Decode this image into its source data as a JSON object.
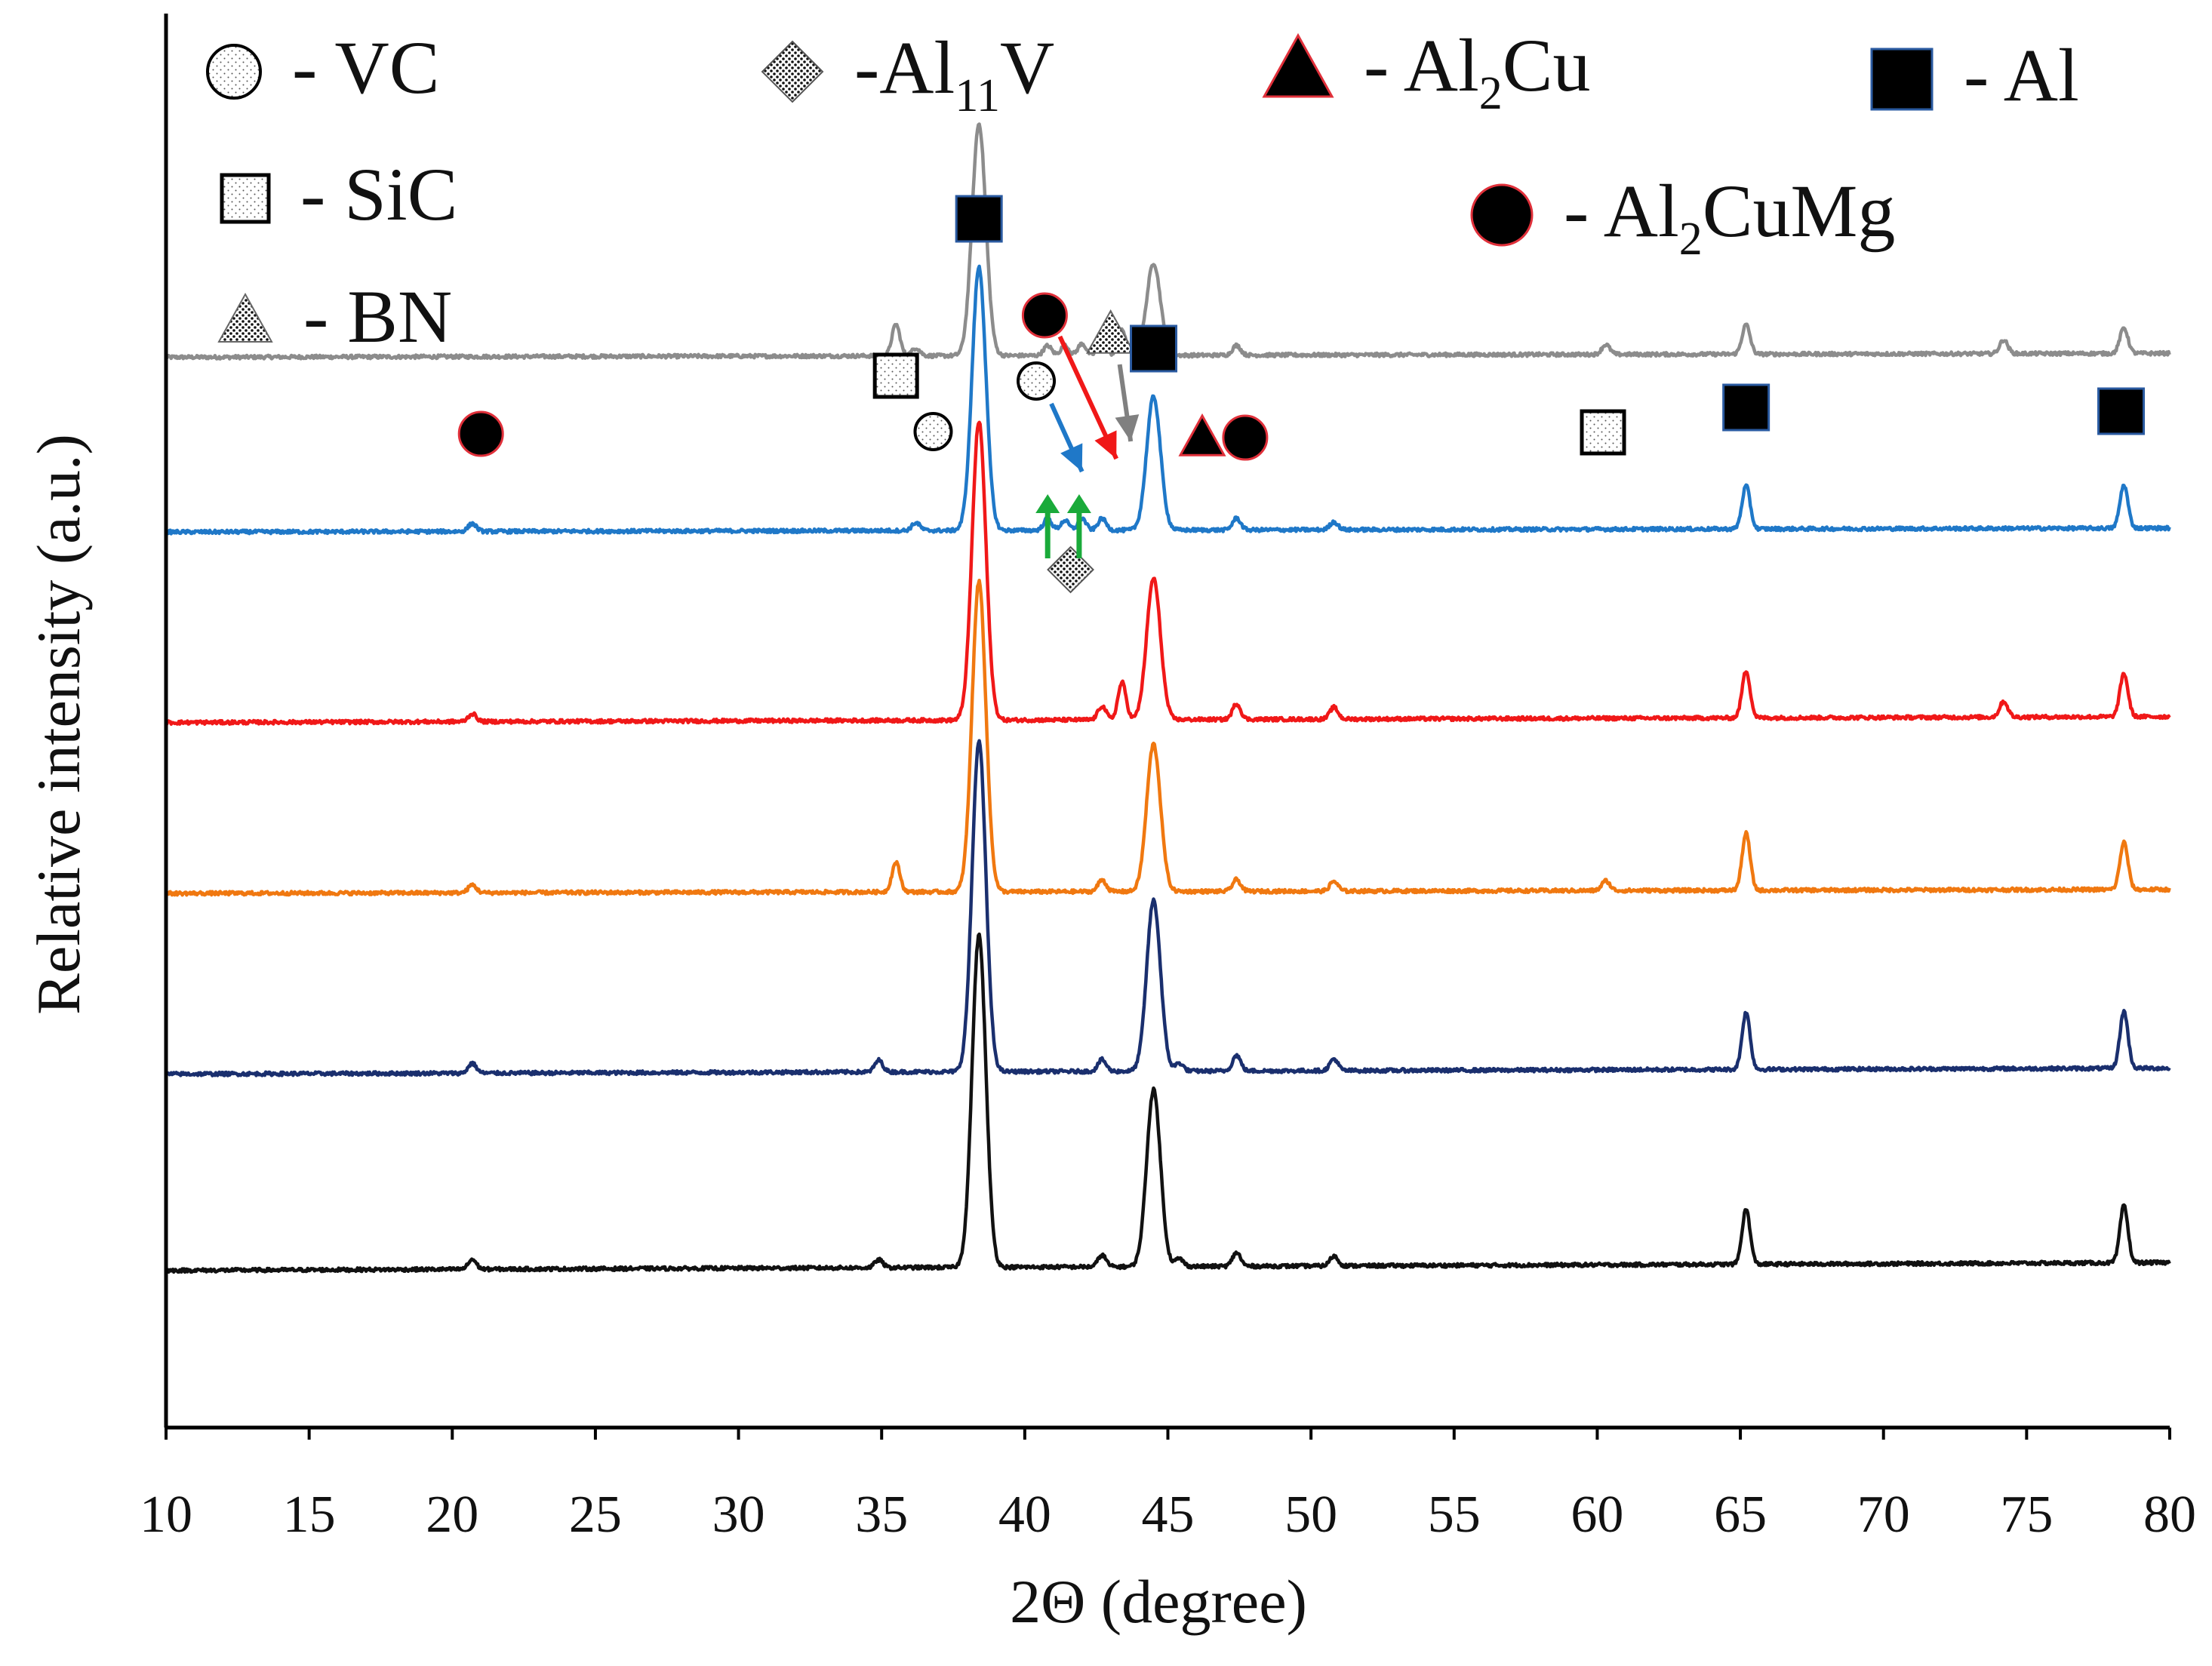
{
  "chart_data": {
    "type": "line",
    "title": "",
    "xlabel": "2Θ (degree)",
    "ylabel": "Relative intensity (a.u.)",
    "xlim": [
      10,
      80
    ],
    "xticks": [
      10,
      15,
      20,
      25,
      30,
      35,
      40,
      45,
      50,
      55,
      60,
      65,
      70,
      75,
      80
    ],
    "ylim": [
      0,
      7.2
    ],
    "grid": false,
    "legend_position": "top",
    "series_note": "Six stacked XRD patterns (top to bottom: gray, blue, red, orange, navy, black); values are relative intensity above each baseline offset",
    "series": [
      {
        "name": "gray",
        "color": "#8c8c8c",
        "offset": 5.45,
        "baseline_end": 5.47,
        "peaks": [
          [
            35.5,
            0.16
          ],
          [
            36.2,
            0.04
          ],
          [
            38.4,
            1.18
          ],
          [
            40.8,
            0.05
          ],
          [
            41.4,
            0.05
          ],
          [
            42.0,
            0.06
          ],
          [
            42.7,
            0.08
          ],
          [
            43.4,
            0.13
          ],
          [
            44.5,
            0.47
          ],
          [
            47.4,
            0.05
          ],
          [
            60.3,
            0.05
          ],
          [
            65.2,
            0.15
          ],
          [
            74.2,
            0.07
          ],
          [
            78.4,
            0.13
          ]
        ]
      },
      {
        "name": "blue",
        "color": "#1f78c8",
        "offset": 4.56,
        "baseline_end": 4.58,
        "peaks": [
          [
            20.7,
            0.04
          ],
          [
            36.2,
            0.04
          ],
          [
            38.4,
            1.34
          ],
          [
            40.8,
            0.06
          ],
          [
            41.4,
            0.05
          ],
          [
            42.0,
            0.06
          ],
          [
            42.7,
            0.06
          ],
          [
            44.5,
            0.68
          ],
          [
            47.4,
            0.06
          ],
          [
            50.8,
            0.04
          ],
          [
            65.2,
            0.22
          ],
          [
            78.4,
            0.22
          ]
        ]
      },
      {
        "name": "red",
        "color": "#f01818",
        "offset": 3.59,
        "baseline_end": 3.62,
        "peaks": [
          [
            20.7,
            0.04
          ],
          [
            38.4,
            1.52
          ],
          [
            42.7,
            0.07
          ],
          [
            43.4,
            0.19
          ],
          [
            44.5,
            0.72
          ],
          [
            47.4,
            0.08
          ],
          [
            50.8,
            0.06
          ],
          [
            65.2,
            0.24
          ],
          [
            74.2,
            0.08
          ],
          [
            78.4,
            0.22
          ]
        ]
      },
      {
        "name": "orange",
        "color": "#f07810",
        "offset": 2.72,
        "baseline_end": 2.74,
        "peaks": [
          [
            20.7,
            0.04
          ],
          [
            35.5,
            0.15
          ],
          [
            38.4,
            1.58
          ],
          [
            42.7,
            0.06
          ],
          [
            44.5,
            0.75
          ],
          [
            47.4,
            0.06
          ],
          [
            50.8,
            0.05
          ],
          [
            60.3,
            0.05
          ],
          [
            65.2,
            0.29
          ],
          [
            78.4,
            0.24
          ]
        ]
      },
      {
        "name": "navy",
        "color": "#1a2f6e",
        "offset": 1.8,
        "baseline_end": 1.83,
        "peaks": [
          [
            20.7,
            0.05
          ],
          [
            34.9,
            0.06
          ],
          [
            38.4,
            1.68
          ],
          [
            42.7,
            0.06
          ],
          [
            44.5,
            0.87
          ],
          [
            45.4,
            0.04
          ],
          [
            47.4,
            0.08
          ],
          [
            50.8,
            0.06
          ],
          [
            65.2,
            0.29
          ],
          [
            78.4,
            0.29
          ]
        ]
      },
      {
        "name": "black",
        "color": "#111111",
        "offset": 0.8,
        "baseline_end": 0.84,
        "peaks": [
          [
            20.7,
            0.05
          ],
          [
            34.9,
            0.04
          ],
          [
            38.4,
            1.69
          ],
          [
            42.7,
            0.06
          ],
          [
            44.5,
            0.9
          ],
          [
            45.4,
            0.04
          ],
          [
            47.4,
            0.07
          ],
          [
            50.8,
            0.05
          ],
          [
            65.2,
            0.28
          ],
          [
            78.4,
            0.29
          ]
        ]
      }
    ],
    "legend": [
      {
        "symbol": "open-circle",
        "label": "- VC",
        "color": "#ffffff"
      },
      {
        "symbol": "dotted-diamond",
        "label": "-Al",
        "subscript": "11",
        "suffix": "V",
        "color": "#ffffff"
      },
      {
        "symbol": "filled-triangle",
        "label": "- Al",
        "subscript": "2",
        "suffix": "Cu",
        "color": "#000000"
      },
      {
        "symbol": "filled-square",
        "label": "- Al",
        "subscript": "",
        "suffix": "",
        "color": "#000000"
      },
      {
        "symbol": "open-square",
        "label": "- SiC",
        "color": "#ffffff"
      },
      {
        "symbol": "filled-circle",
        "label": "- Al",
        "subscript": "2",
        "suffix": "CuMg",
        "color": "#000000"
      },
      {
        "symbol": "dotted-triangle",
        "label": "- BN",
        "color": "#ffffff"
      }
    ],
    "annotations": [
      {
        "phase": "Al2CuMg",
        "symbol": "filled-circle",
        "x": 21.0
      },
      {
        "phase": "SiC",
        "symbol": "open-square",
        "x": 35.5
      },
      {
        "phase": "VC",
        "symbol": "open-circle",
        "x": 36.8
      },
      {
        "phase": "Al",
        "symbol": "filled-square",
        "x": 38.4
      },
      {
        "phase": "VC",
        "symbol": "open-circle",
        "x": 40.4,
        "arrow_color": "#1f78c8"
      },
      {
        "phase": "Al2CuMg",
        "symbol": "filled-circle",
        "x": 40.7,
        "arrow_color": "#f01818"
      },
      {
        "phase": "BN",
        "symbol": "dotted-triangle",
        "x": 43.0,
        "arrow_color": "#808080"
      },
      {
        "phase": "Al",
        "symbol": "filled-square",
        "x": 44.5
      },
      {
        "phase": "Al2Cu",
        "symbol": "filled-triangle",
        "x": 46.2
      },
      {
        "phase": "Al2CuMg",
        "symbol": "filled-circle",
        "x": 47.7
      },
      {
        "phase": "Al11V",
        "symbol": "dotted-diamond",
        "x": 41.6,
        "arrow_color": "#1aaa3a"
      },
      {
        "phase": "SiC",
        "symbol": "open-square",
        "x": 60.2
      },
      {
        "phase": "Al",
        "symbol": "filled-square",
        "x": 65.2
      },
      {
        "phase": "Al",
        "symbol": "filled-square",
        "x": 78.3
      }
    ]
  }
}
